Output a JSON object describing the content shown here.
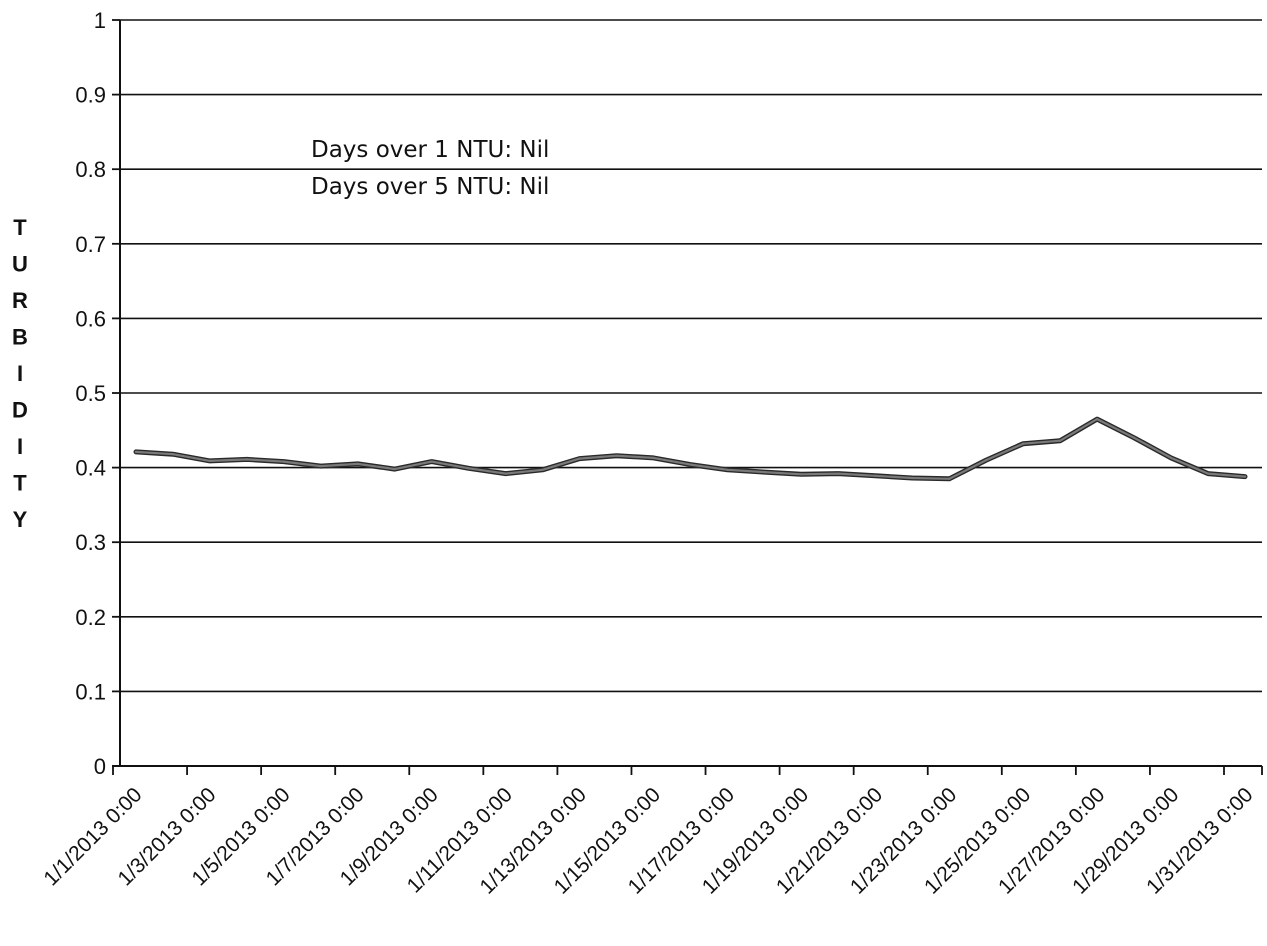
{
  "chart_data": {
    "type": "line",
    "xlabel": "",
    "ylabel": "TURBIDITY",
    "ylim": [
      0,
      1
    ],
    "yticks": [
      0,
      0.1,
      0.2,
      0.3,
      0.4,
      0.5,
      0.6,
      0.7,
      0.8,
      0.9,
      1
    ],
    "ytick_labels": [
      "0",
      "0.1",
      "0.2",
      "0.3",
      "0.4",
      "0.5",
      "0.6",
      "0.7",
      "0.8",
      "0.9",
      "1"
    ],
    "xtick_labels": [
      "1/1/2013 0:00",
      "1/3/2013 0:00",
      "1/5/2013 0:00",
      "1/7/2013 0:00",
      "1/9/2013 0:00",
      "1/11/2013 0:00",
      "1/13/2013 0:00",
      "1/15/2013 0:00",
      "1/17/2013 0:00",
      "1/19/2013 0:00",
      "1/21/2013 0:00",
      "1/23/2013 0:00",
      "1/25/2013 0:00",
      "1/27/2013 0:00",
      "1/29/2013 0:00",
      "1/31/2013 0:00"
    ],
    "grid": true,
    "annotations": [
      "Days over 1 NTU: Nil",
      "Days over 5 NTU: Nil"
    ],
    "series": [
      {
        "color": "#7a7a7a",
        "x": [
          "1/1/2013 0:00",
          "1/2/2013 0:00",
          "1/3/2013 0:00",
          "1/4/2013 0:00",
          "1/5/2013 0:00",
          "1/6/2013 0:00",
          "1/7/2013 0:00",
          "1/8/2013 0:00",
          "1/9/2013 0:00",
          "1/10/2013 0:00",
          "1/11/2013 0:00",
          "1/12/2013 0:00",
          "1/13/2013 0:00",
          "1/14/2013 0:00",
          "1/15/2013 0:00",
          "1/16/2013 0:00",
          "1/17/2013 0:00",
          "1/18/2013 0:00",
          "1/19/2013 0:00",
          "1/20/2013 0:00",
          "1/21/2013 0:00",
          "1/22/2013 0:00",
          "1/23/2013 0:00",
          "1/24/2013 0:00",
          "1/25/2013 0:00",
          "1/26/2013 0:00",
          "1/27/2013 0:00",
          "1/28/2013 0:00",
          "1/29/2013 0:00",
          "1/30/2013 0:00",
          "1/31/2013 0:00"
        ],
        "values": [
          0.421,
          0.418,
          0.409,
          0.411,
          0.408,
          0.402,
          0.405,
          0.398,
          0.408,
          0.399,
          0.392,
          0.397,
          0.412,
          0.416,
          0.413,
          0.404,
          0.397,
          0.394,
          0.391,
          0.392,
          0.389,
          0.386,
          0.385,
          0.41,
          0.432,
          0.436,
          0.465,
          0.44,
          0.413,
          0.392,
          0.388
        ]
      }
    ]
  }
}
